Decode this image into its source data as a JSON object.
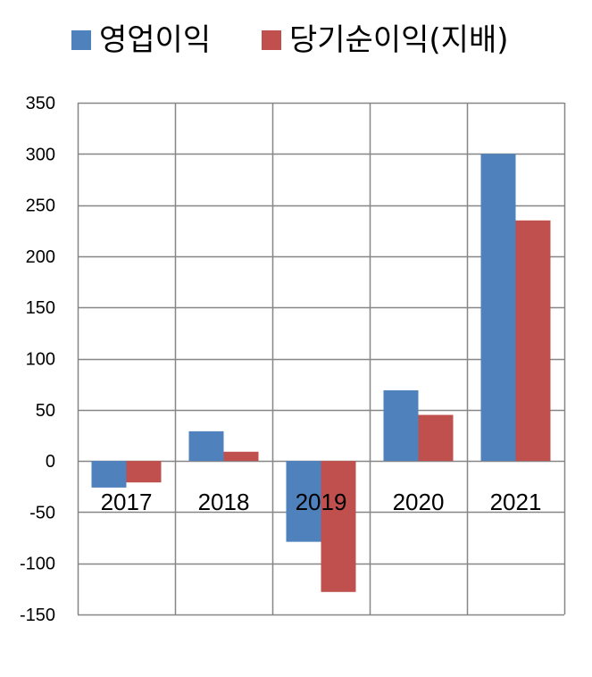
{
  "chart_data": {
    "type": "bar",
    "categories": [
      "2017",
      "2018",
      "2019",
      "2020",
      "2021"
    ],
    "series": [
      {
        "name": "영업이익",
        "color": "#4f81bd",
        "values": [
          -26,
          29,
          -79,
          69,
          300
        ]
      },
      {
        "name": "당기순이익(지배)",
        "color": "#c0504d",
        "values": [
          -21,
          9,
          -128,
          45,
          235
        ]
      }
    ],
    "ylim": [
      -150,
      350
    ],
    "yticks": [
      350,
      300,
      250,
      200,
      150,
      100,
      50,
      0,
      -50,
      -100,
      -150
    ],
    "ytick_labels": [
      "350",
      "300",
      "250",
      "200",
      "150",
      "100",
      "50",
      "0",
      "-50",
      "-100",
      "-150"
    ],
    "grid": true,
    "legend_position": "top",
    "title": "",
    "xlabel": "",
    "ylabel": ""
  }
}
